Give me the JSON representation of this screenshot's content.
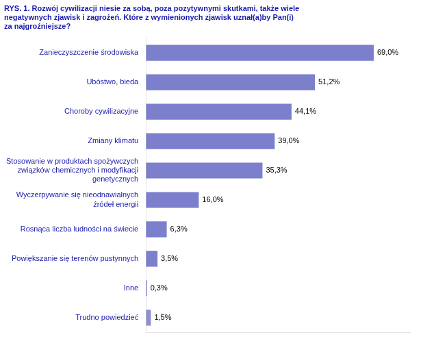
{
  "chart_data": {
    "type": "bar",
    "orientation": "horizontal",
    "title": "RYS. 1. Rozwój cywilizacji niesie za sobą, poza pozytywnymi skutkami, także wiele\nnegatywnych zjawisk i zagrożeń. Które z wymienionych zjawisk uznał(a)by Pan(i)\nza najgroźniejsze?",
    "categories": [
      "Zanieczyszczenie środowiska",
      "Ubóstwo, bieda",
      "Choroby cywilizacyjne",
      "Zmiany klimatu",
      "Stosowanie w produktach spożywczych\nzwiązków chemicznych i modyfikacji\ngenetycznych",
      "Wyczerpywanie się nieodnawialnych\nźródeł energii",
      "Rosnąca liczba ludności na świecie",
      "Powiększanie się terenów pustynnych",
      "Inne",
      "Trudno powiedzieć"
    ],
    "values": [
      69.0,
      51.2,
      44.1,
      39.0,
      35.3,
      16.0,
      6.3,
      3.5,
      0.3,
      1.5
    ],
    "value_labels": [
      "69,0%",
      "51,2%",
      "44,1%",
      "39,0%",
      "35,3%",
      "16,0%",
      "6,3%",
      "3,5%",
      "0,3%",
      "1,5%"
    ],
    "colors": [
      "#7B7FCC",
      "#7B7FCC",
      "#7B7FCC",
      "#7B7FCC",
      "#7B7FCC",
      "#7B7FCC",
      "#7B7FCC",
      "#7B7FCC",
      "#7B7FCC",
      "#9090CC"
    ],
    "xlim": [
      0,
      80
    ],
    "data_labels": true,
    "tick_labels": "y",
    "grid": false
  }
}
